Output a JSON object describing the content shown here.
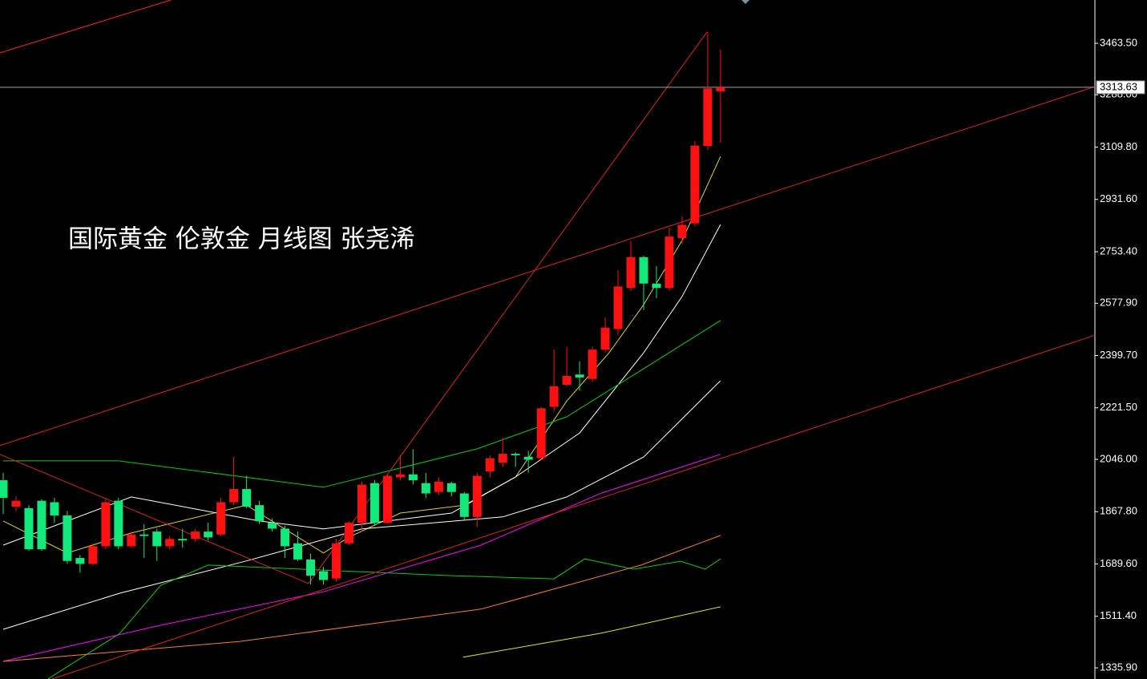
{
  "chart_data": {
    "type": "candlestick",
    "title": "国际黄金 伦敦金 月线图 张尧浠",
    "xlim": [
      -0.25,
      85.23
    ],
    "ylim": [
      1297.8,
      3611
    ],
    "yticks": [
      {
        "value": 3463.5,
        "label": "3463.50"
      },
      {
        "value": 3288,
        "label": "3288.00"
      },
      {
        "value": 3109.8,
        "label": "3109.80"
      },
      {
        "value": 2931.6,
        "label": "2931.60"
      },
      {
        "value": 2753.4,
        "label": "2753.40"
      },
      {
        "value": 2577.9,
        "label": "2577.90"
      },
      {
        "value": 2399.7,
        "label": "2399.70"
      },
      {
        "value": 2221.5,
        "label": "2221.50"
      },
      {
        "value": 2046,
        "label": "2046.00"
      },
      {
        "value": 1867.8,
        "label": "1867.80"
      },
      {
        "value": 1689.6,
        "label": "1689.60"
      },
      {
        "value": 1511.4,
        "label": "1511.40"
      },
      {
        "value": 1335.9,
        "label": "1335.90"
      }
    ],
    "last_price": 3313.63,
    "up_color": "#ff1010",
    "down_color": "#10e87a",
    "open": [
      1975,
      1885,
      1880,
      1905,
      1900,
      1855,
      1710,
      1690,
      1750,
      1905,
      1750,
      1790,
      1800,
      1750,
      1775,
      1775,
      1800,
      1790,
      1900,
      1945,
      1890,
      1830,
      1810,
      1760,
      1705,
      1665,
      1640,
      1760,
      1830,
      1965,
      1830,
      1985,
      1995,
      1965,
      1935,
      1965,
      1930,
      1850,
      2005,
      2035,
      2065,
      2055,
      2050,
      2225,
      2300,
      2335,
      2320,
      2420,
      2490,
      2630,
      2735,
      2645,
      2630,
      2800,
      2850,
      3114,
      3300
    ],
    "high": [
      2000,
      1920,
      1890,
      1910,
      1915,
      1870,
      1720,
      1760,
      1910,
      1915,
      1800,
      1825,
      1810,
      1785,
      1810,
      1810,
      1830,
      1915,
      2055,
      1990,
      1905,
      1845,
      1820,
      1800,
      1725,
      1680,
      1775,
      1835,
      1970,
      1975,
      1995,
      2060,
      2080,
      2000,
      1985,
      1970,
      1935,
      2000,
      2060,
      2120,
      2070,
      2075,
      2225,
      2420,
      2430,
      2380,
      2430,
      2530,
      2690,
      2790,
      2740,
      2705,
      2835,
      2875,
      3130,
      3502,
      3442
    ],
    "low": [
      1860,
      1870,
      1735,
      1735,
      1830,
      1690,
      1660,
      1685,
      1740,
      1740,
      1745,
      1710,
      1700,
      1740,
      1745,
      1765,
      1770,
      1785,
      1890,
      1880,
      1825,
      1800,
      1710,
      1700,
      1620,
      1620,
      1630,
      1755,
      1800,
      1820,
      1825,
      1975,
      1960,
      1915,
      1925,
      1920,
      1840,
      1815,
      1985,
      2020,
      2020,
      2000,
      2045,
      2210,
      2295,
      2280,
      2310,
      2410,
      2470,
      2620,
      2555,
      2595,
      2620,
      2780,
      2840,
      3100,
      3125
    ],
    "close": [
      1915,
      1905,
      1740,
      1740,
      1855,
      1700,
      1690,
      1750,
      1900,
      1750,
      1790,
      1785,
      1750,
      1775,
      1770,
      1800,
      1780,
      1900,
      1945,
      1885,
      1835,
      1810,
      1750,
      1705,
      1650,
      1635,
      1760,
      1830,
      1960,
      1830,
      1990,
      1995,
      1975,
      1930,
      1970,
      1935,
      1850,
      1990,
      2050,
      2065,
      2060,
      2045,
      2220,
      2295,
      2330,
      2325,
      2420,
      2495,
      2635,
      2735,
      2645,
      2630,
      2805,
      2845,
      3115,
      3310,
      3313.63
    ],
    "lines": [
      {
        "color": "#e8d800",
        "x": [
          0,
          5,
          10,
          19,
          25,
          27,
          31,
          36,
          40,
          44,
          47.3,
          50,
          53,
          56
        ],
        "values": [
          1836,
          1727,
          1795,
          1890,
          1727,
          1781,
          1863,
          1890,
          1986,
          2245,
          2409,
          2573,
          2792,
          3078
        ]
      },
      {
        "color": "#ffffff",
        "x": [
          0,
          10,
          20,
          25,
          35,
          40,
          45,
          50,
          53,
          56
        ],
        "values": [
          1754,
          1918,
          1836,
          1809,
          1863,
          1986,
          2136,
          2409,
          2601,
          2846
        ]
      },
      {
        "color": "#ffffff",
        "x": [
          0,
          9.1,
          19,
          28,
          39,
          44,
          50,
          56
        ],
        "values": [
          1467,
          1590,
          1700,
          1809,
          1850,
          1918,
          2054,
          2314
        ]
      },
      {
        "color": "#00d000",
        "x": [
          0,
          9,
          25,
          37,
          44,
          50,
          56
        ],
        "values": [
          2041,
          2041,
          1951,
          2082,
          2191,
          2355,
          2519
        ]
      },
      {
        "color": "#00d000",
        "x": [
          3.5,
          9.1,
          12.3,
          16,
          34.8,
          43,
          45.4,
          49.2,
          52.9,
          54.8,
          56
        ],
        "values": [
          1298,
          1453,
          1617,
          1686,
          1650,
          1639,
          1707,
          1672,
          1699,
          1672,
          1707
        ]
      },
      {
        "color": "#ff00ff",
        "x": [
          0,
          12.3,
          25,
          37.3,
          46.7,
          56
        ],
        "values": [
          1358,
          1481,
          1595,
          1754,
          1931,
          2063
        ]
      },
      {
        "color": "#ff8020",
        "x": [
          0,
          18.5,
          37.3,
          49.8,
          56
        ],
        "values": [
          1358,
          1426,
          1536,
          1686,
          1787
        ]
      },
      {
        "color": "#e8e800",
        "x": [
          35.9,
          46.7,
          56
        ],
        "values": [
          1372,
          1454,
          1544
        ]
      },
      {
        "color": "#ff2020",
        "x": [
          -0.25,
          13.08
        ],
        "values": [
          3431,
          3611
        ]
      },
      {
        "color": "#e02020",
        "x": [
          -0.25,
          85.23
        ],
        "values": [
          2093,
          3316
        ]
      },
      {
        "color": "#e02020",
        "x": [
          -0.25,
          23.84
        ],
        "values": [
          2063,
          1623
        ]
      },
      {
        "color": "#e02020",
        "x": [
          23.84,
          54.94
        ],
        "values": [
          1623,
          3502
        ]
      },
      {
        "color": "#e02020",
        "x": [
          3.82,
          85.23
        ],
        "values": [
          1298,
          2469
        ]
      }
    ]
  }
}
